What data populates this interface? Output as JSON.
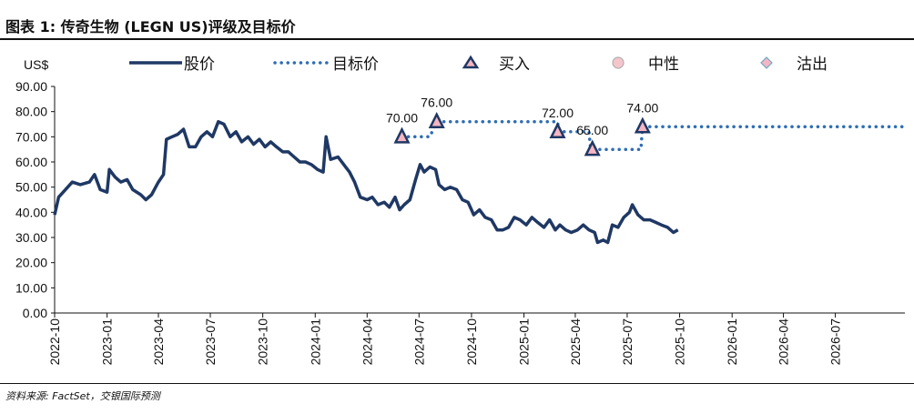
{
  "header": {
    "title": "图表 1: 传奇生物 (LEGN US)评级及目标价"
  },
  "footer": {
    "source": "资料来源: FactSet，交银国际预测"
  },
  "colors": {
    "price_line": "#1f3864",
    "target_line": "#2e6db4",
    "buy_fill": "#f4b6c2",
    "buy_edge": "#1f3864"
  },
  "chart_data": {
    "type": "line",
    "title": "",
    "ylabel": "US$",
    "ylim": [
      0,
      90
    ],
    "y_ticks": [
      "0.00",
      "10.00",
      "20.00",
      "30.00",
      "40.00",
      "50.00",
      "60.00",
      "70.00",
      "80.00",
      "90.00"
    ],
    "x_range": [
      "2022-10",
      "2026-10"
    ],
    "x_ticks": [
      "2022-10",
      "2023-01",
      "2023-04",
      "2023-07",
      "2023-10",
      "2024-01",
      "2024-04",
      "2024-07",
      "2024-10",
      "2025-01",
      "2025-04",
      "2025-07",
      "2025-10",
      "2026-01",
      "2026-04",
      "2026-07"
    ],
    "legend": [
      {
        "name": "股价",
        "style": "solid-line"
      },
      {
        "name": "目标价",
        "style": "dotted-line"
      },
      {
        "name": "买入",
        "style": "triangle-marker"
      },
      {
        "name": "中性",
        "style": "circle-marker"
      },
      {
        "name": "沽出",
        "style": "diamond-marker"
      }
    ],
    "price_series": {
      "name": "股价",
      "points": [
        [
          "2022-10-01",
          39
        ],
        [
          "2022-10-08",
          46
        ],
        [
          "2022-10-20",
          49
        ],
        [
          "2022-11-01",
          52
        ],
        [
          "2022-11-15",
          51
        ],
        [
          "2022-12-01",
          52
        ],
        [
          "2022-12-10",
          55
        ],
        [
          "2022-12-20",
          49
        ],
        [
          "2023-01-01",
          48
        ],
        [
          "2023-01-05",
          57
        ],
        [
          "2023-01-15",
          54
        ],
        [
          "2023-01-25",
          52
        ],
        [
          "2023-02-05",
          53
        ],
        [
          "2023-02-15",
          49
        ],
        [
          "2023-03-01",
          47
        ],
        [
          "2023-03-10",
          45
        ],
        [
          "2023-03-20",
          47
        ],
        [
          "2023-04-01",
          52
        ],
        [
          "2023-04-10",
          55
        ],
        [
          "2023-04-15",
          69
        ],
        [
          "2023-04-25",
          70
        ],
        [
          "2023-05-05",
          71
        ],
        [
          "2023-05-15",
          73
        ],
        [
          "2023-05-25",
          66
        ],
        [
          "2023-06-05",
          66
        ],
        [
          "2023-06-15",
          70
        ],
        [
          "2023-06-25",
          72
        ],
        [
          "2023-07-05",
          70
        ],
        [
          "2023-07-15",
          76
        ],
        [
          "2023-07-25",
          75
        ],
        [
          "2023-08-05",
          70
        ],
        [
          "2023-08-15",
          72
        ],
        [
          "2023-08-25",
          68
        ],
        [
          "2023-09-05",
          70
        ],
        [
          "2023-09-15",
          67
        ],
        [
          "2023-09-25",
          69
        ],
        [
          "2023-10-05",
          66
        ],
        [
          "2023-10-15",
          68
        ],
        [
          "2023-10-25",
          66
        ],
        [
          "2023-11-05",
          64
        ],
        [
          "2023-11-15",
          64
        ],
        [
          "2023-11-25",
          62
        ],
        [
          "2023-12-05",
          60
        ],
        [
          "2023-12-15",
          60
        ],
        [
          "2023-12-25",
          59
        ],
        [
          "2024-01-05",
          57
        ],
        [
          "2024-01-15",
          56
        ],
        [
          "2024-01-20",
          70
        ],
        [
          "2024-01-28",
          61
        ],
        [
          "2024-02-10",
          62
        ],
        [
          "2024-02-20",
          59
        ],
        [
          "2024-03-01",
          56
        ],
        [
          "2024-03-10",
          52
        ],
        [
          "2024-03-20",
          46
        ],
        [
          "2024-04-01",
          45
        ],
        [
          "2024-04-10",
          46
        ],
        [
          "2024-04-20",
          43
        ],
        [
          "2024-05-01",
          44
        ],
        [
          "2024-05-10",
          42
        ],
        [
          "2024-05-20",
          46
        ],
        [
          "2024-05-28",
          41
        ],
        [
          "2024-06-05",
          43
        ],
        [
          "2024-06-15",
          45
        ],
        [
          "2024-06-25",
          53
        ],
        [
          "2024-07-03",
          59
        ],
        [
          "2024-07-10",
          56
        ],
        [
          "2024-07-20",
          58
        ],
        [
          "2024-07-30",
          57
        ],
        [
          "2024-08-05",
          51
        ],
        [
          "2024-08-15",
          49
        ],
        [
          "2024-08-25",
          50
        ],
        [
          "2024-09-05",
          49
        ],
        [
          "2024-09-15",
          45
        ],
        [
          "2024-09-25",
          44
        ],
        [
          "2024-10-05",
          39
        ],
        [
          "2024-10-15",
          41
        ],
        [
          "2024-10-25",
          38
        ],
        [
          "2024-11-05",
          37
        ],
        [
          "2024-11-15",
          33
        ],
        [
          "2024-11-25",
          33
        ],
        [
          "2024-12-05",
          34
        ],
        [
          "2024-12-15",
          38
        ],
        [
          "2024-12-25",
          37
        ],
        [
          "2025-01-05",
          35
        ],
        [
          "2025-01-15",
          38
        ],
        [
          "2025-01-25",
          36
        ],
        [
          "2025-02-05",
          34
        ],
        [
          "2025-02-15",
          37
        ],
        [
          "2025-02-25",
          33
        ],
        [
          "2025-03-05",
          35
        ],
        [
          "2025-03-15",
          33
        ],
        [
          "2025-03-25",
          32
        ],
        [
          "2025-04-05",
          33
        ],
        [
          "2025-04-15",
          35
        ],
        [
          "2025-04-25",
          33
        ],
        [
          "2025-05-05",
          32
        ],
        [
          "2025-05-10",
          28
        ],
        [
          "2025-05-20",
          29
        ],
        [
          "2025-05-28",
          28
        ],
        [
          "2025-06-05",
          35
        ],
        [
          "2025-06-15",
          34
        ],
        [
          "2025-06-25",
          38
        ],
        [
          "2025-07-05",
          40
        ],
        [
          "2025-07-10",
          43
        ],
        [
          "2025-07-20",
          39
        ],
        [
          "2025-07-30",
          37
        ],
        [
          "2025-08-10",
          37
        ],
        [
          "2025-08-20",
          36
        ],
        [
          "2025-08-30",
          35
        ],
        [
          "2025-09-10",
          34
        ],
        [
          "2025-09-20",
          32
        ],
        [
          "2025-09-28",
          33
        ]
      ]
    },
    "target_series": {
      "name": "目标价",
      "points": [
        [
          "2024-06-01",
          70
        ],
        [
          "2024-07-20",
          70
        ],
        [
          "2024-08-01",
          76
        ],
        [
          "2025-03-01",
          76
        ],
        [
          "2025-03-03",
          72
        ],
        [
          "2025-04-25",
          72
        ],
        [
          "2025-04-28",
          65
        ],
        [
          "2025-07-25",
          65
        ],
        [
          "2025-07-28",
          74
        ],
        [
          "2026-10-31",
          74
        ]
      ]
    },
    "ratings": [
      {
        "date": "2024-06-01",
        "rating": "买入",
        "target": 70,
        "label": "70.00"
      },
      {
        "date": "2024-08-01",
        "rating": "买入",
        "target": 76,
        "label": "76.00"
      },
      {
        "date": "2025-03-01",
        "rating": "买入",
        "target": 72,
        "label": "72.00"
      },
      {
        "date": "2025-05-01",
        "rating": "买入",
        "target": 65,
        "label": "65.00"
      },
      {
        "date": "2025-07-28",
        "rating": "买入",
        "target": 74,
        "label": "74.00"
      }
    ]
  }
}
